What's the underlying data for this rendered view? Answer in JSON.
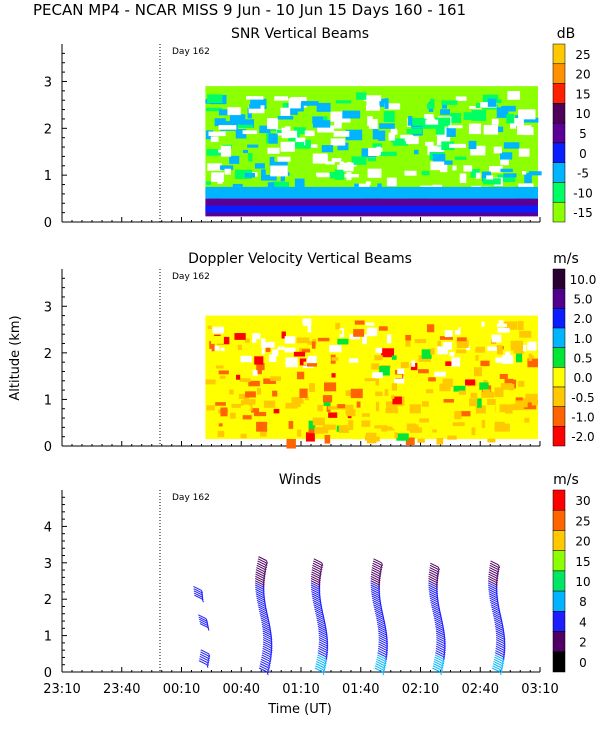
{
  "title": "PECAN MP4 - NCAR MISS   9 Jun - 10 Jun 15 Days 160 - 161",
  "xlabel": "Time (UT)",
  "x_ticks": [
    "23:10",
    "23:40",
    "00:10",
    "00:40",
    "01:10",
    "01:40",
    "02:10",
    "02:40",
    "03:10"
  ],
  "day_marker": "Day 162",
  "chart_data": [
    {
      "type": "heatmap",
      "title": "SNR Vertical Beams",
      "ylabel": "",
      "y_ticks": [
        "0",
        "1",
        "2",
        "3"
      ],
      "ylim": [
        0,
        3.8
      ],
      "xlim": [
        "23:10",
        "03:10"
      ],
      "data_start": "00:22",
      "colorbar": {
        "unit": "dB",
        "labels": [
          "25",
          "20",
          "15",
          "10",
          "5",
          "0",
          "-5",
          "-10",
          "-15"
        ],
        "colors": [
          "#ffc800",
          "#ff9000",
          "#ff2000",
          "#50005a",
          "#5a0096",
          "#0a1eff",
          "#00b4ff",
          "#00ff64",
          "#8cff00"
        ]
      }
    },
    {
      "type": "heatmap",
      "title": "Doppler Velocity Vertical Beams",
      "ylabel": "Altitude (km)",
      "y_ticks": [
        "0",
        "1",
        "2",
        "3"
      ],
      "ylim": [
        0,
        3.8
      ],
      "xlim": [
        "23:10",
        "03:10"
      ],
      "data_start": "00:22",
      "colorbar": {
        "unit": "m/s",
        "labels": [
          "10.0",
          "5.0",
          "2.0",
          "1.0",
          "0.5",
          "0.0",
          "-0.5",
          "-1.0",
          "-2.0"
        ],
        "colors": [
          "#2a0032",
          "#50008c",
          "#0a1eff",
          "#00b4ff",
          "#00e632",
          "#ffff00",
          "#ffc800",
          "#ff6400",
          "#ff0000"
        ]
      }
    },
    {
      "type": "barbs",
      "title": "Winds",
      "ylabel": "",
      "y_ticks": [
        "0",
        "1",
        "2",
        "3",
        "4"
      ],
      "ylim": [
        0,
        5
      ],
      "xlim": [
        "23:10",
        "03:10"
      ],
      "profile_times": [
        "00:22",
        "00:53",
        "01:21",
        "01:51",
        "02:20",
        "02:50"
      ],
      "colorbar": {
        "unit": "m/s",
        "labels": [
          "30",
          "25",
          "20",
          "15",
          "10",
          "8",
          "4",
          "2",
          "0"
        ],
        "colors": [
          "#ff0000",
          "#ff6400",
          "#ffc800",
          "#8cff00",
          "#00e664",
          "#00b4ff",
          "#1e1eff",
          "#500064",
          "#000000"
        ]
      }
    }
  ]
}
